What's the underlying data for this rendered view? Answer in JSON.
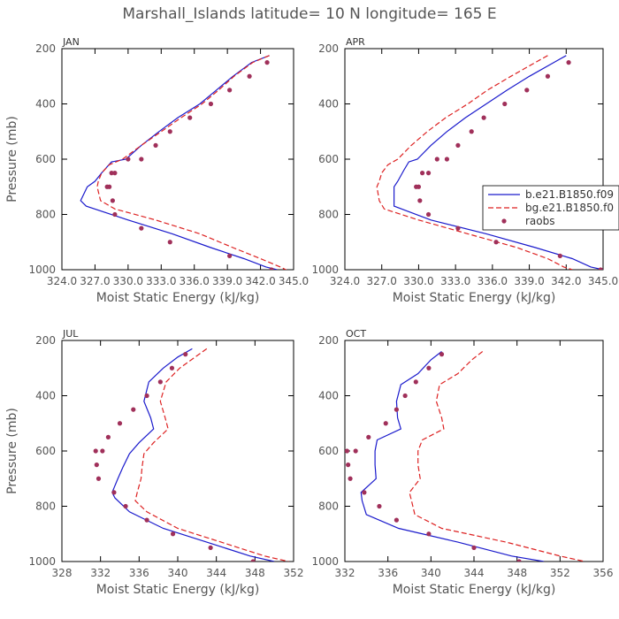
{
  "figure": {
    "title": "Marshall_Islands  latitude= 10 N longitude= 165 E"
  },
  "colors": {
    "model1": "#1a1acc",
    "model2": "#dd2222",
    "obs": "#a0305a"
  },
  "chart_data": [
    {
      "type": "line",
      "panel": "JAN",
      "xlabel": "Moist Static Energy (kJ/kg)",
      "ylabel": "Pressure (mb)",
      "xlim": [
        324.0,
        345.0
      ],
      "ylim": [
        1000,
        200
      ],
      "xticks": [
        324.0,
        327.0,
        330.0,
        333.0,
        336.0,
        339.0,
        342.0,
        345.0
      ],
      "xtick_labels": [
        "324.0",
        "327.0",
        "330.0",
        "333.0",
        "336.0",
        "339.0",
        "342.0",
        "345.0"
      ],
      "yticks": [
        200,
        400,
        600,
        800,
        1000
      ],
      "ytick_labels": [
        "200",
        "400",
        "600",
        "800",
        "1000"
      ],
      "legend": false,
      "series": [
        {
          "style": "solid",
          "x": [
            342.8,
            341.2,
            339.5,
            338.0,
            336.5,
            334.5,
            332.8,
            331.2,
            329.8,
            328.5,
            327.6,
            327.0,
            326.3,
            325.7,
            326.2,
            330.0,
            334.0,
            337.5,
            340.5,
            342.5,
            343.5
          ],
          "y": [
            225,
            250,
            300,
            350,
            400,
            450,
            500,
            550,
            600,
            610,
            650,
            680,
            700,
            750,
            770,
            820,
            870,
            920,
            960,
            990,
            1000
          ]
        },
        {
          "style": "dash",
          "x": [
            342.8,
            341.3,
            339.6,
            338.2,
            336.7,
            334.8,
            333.0,
            331.2,
            329.5,
            328.3,
            327.6,
            327.3,
            327.2,
            327.5,
            328.8,
            332.5,
            336.5,
            339.5,
            342.0,
            343.8,
            344.8
          ],
          "y": [
            225,
            250,
            300,
            350,
            400,
            450,
            500,
            550,
            600,
            620,
            650,
            680,
            700,
            750,
            780,
            820,
            870,
            920,
            960,
            990,
            1010
          ]
        }
      ],
      "points": {
        "x": [
          342.6,
          341.0,
          339.2,
          337.5,
          335.6,
          333.8,
          332.5,
          331.2,
          330.0,
          328.8,
          328.5,
          328.3,
          328.1,
          328.6,
          328.8,
          331.2,
          333.8,
          339.2,
          343.0
        ],
        "y": [
          250,
          300,
          350,
          400,
          450,
          500,
          550,
          600,
          600,
          650,
          650,
          700,
          700,
          750,
          800,
          850,
          900,
          950,
          1000
        ]
      }
    },
    {
      "type": "line",
      "panel": "APR",
      "xlabel": "Moist Static Energy (kJ/kg)",
      "ylabel": "",
      "xlim": [
        324.0,
        345.0
      ],
      "ylim": [
        1000,
        200
      ],
      "xticks": [
        324.0,
        327.0,
        330.0,
        333.0,
        336.0,
        339.0,
        342.0,
        345.0
      ],
      "xtick_labels": [
        "324.0",
        "327.0",
        "330.0",
        "333.0",
        "336.0",
        "339.0",
        "342.0",
        "345.0"
      ],
      "yticks": [
        200,
        400,
        600,
        800,
        1000
      ],
      "ytick_labels": [
        "200",
        "400",
        "600",
        "800",
        "1000"
      ],
      "legend": true,
      "legend_location": "right",
      "legend_entries": [
        "b.e21.B1850.f09",
        "bg.e21.B1850.f0",
        "raobs"
      ],
      "series": [
        {
          "style": "solid",
          "x": [
            342.0,
            341.0,
            339.0,
            337.2,
            335.5,
            333.8,
            332.3,
            331.0,
            329.9,
            329.2,
            328.8,
            328.3,
            328.0,
            328.0,
            328.0,
            331.0,
            335.5,
            339.5,
            342.5,
            344.0,
            345.0
          ],
          "y": [
            225,
            250,
            300,
            350,
            400,
            450,
            500,
            550,
            600,
            610,
            640,
            680,
            700,
            750,
            770,
            820,
            870,
            920,
            960,
            990,
            1000
          ]
        },
        {
          "style": "dash",
          "x": [
            340.5,
            339.5,
            337.5,
            335.6,
            334.0,
            332.2,
            330.7,
            329.4,
            328.3,
            327.5,
            327.0,
            326.8,
            326.6,
            326.8,
            327.2,
            330.0,
            334.0,
            338.0,
            340.5,
            341.8,
            342.5
          ],
          "y": [
            225,
            250,
            300,
            350,
            400,
            450,
            500,
            550,
            600,
            620,
            650,
            680,
            700,
            750,
            780,
            820,
            870,
            920,
            960,
            990,
            1000
          ]
        }
      ],
      "points": {
        "x": [
          342.2,
          340.5,
          338.8,
          337.0,
          335.3,
          334.3,
          333.2,
          332.3,
          331.5,
          330.8,
          330.3,
          330.0,
          329.8,
          330.1,
          330.8,
          333.2,
          336.3,
          341.5,
          344.8
        ],
        "y": [
          250,
          300,
          350,
          400,
          450,
          500,
          550,
          600,
          600,
          650,
          650,
          700,
          700,
          750,
          800,
          850,
          900,
          950,
          1000
        ]
      }
    },
    {
      "type": "line",
      "panel": "JUL",
      "xlabel": "Moist Static Energy (kJ/kg)",
      "ylabel": "Pressure (mb)",
      "xlim": [
        328,
        352
      ],
      "ylim": [
        1000,
        200
      ],
      "xticks": [
        328,
        332,
        336,
        340,
        344,
        348,
        352
      ],
      "xtick_labels": [
        "328",
        "332",
        "336",
        "340",
        "344",
        "348",
        "352"
      ],
      "yticks": [
        200,
        400,
        600,
        800,
        1000
      ],
      "ytick_labels": [
        "200",
        "400",
        "600",
        "800",
        "1000"
      ],
      "legend": false,
      "series": [
        {
          "style": "solid",
          "x": [
            341.5,
            340.0,
            338.5,
            337.0,
            336.5,
            337.2,
            337.5,
            336.0,
            335.0,
            334.3,
            333.8,
            333.2,
            333.5,
            335.0,
            338.5,
            343.0,
            347.5,
            350.0
          ],
          "y": [
            230,
            260,
            300,
            350,
            420,
            480,
            520,
            570,
            610,
            660,
            700,
            750,
            770,
            820,
            880,
            930,
            980,
            1000
          ]
        },
        {
          "style": "dash",
          "x": [
            343.0,
            341.8,
            340.2,
            338.8,
            338.2,
            338.7,
            339.0,
            337.5,
            336.5,
            336.3,
            336.2,
            335.8,
            335.6,
            336.8,
            340.0,
            344.5,
            349.0,
            351.5
          ],
          "y": [
            230,
            260,
            300,
            350,
            420,
            480,
            520,
            570,
            610,
            660,
            700,
            750,
            780,
            820,
            880,
            930,
            980,
            1000
          ]
        }
      ],
      "points": {
        "x": [
          340.8,
          339.4,
          338.2,
          336.8,
          335.4,
          334.0,
          332.8,
          332.2,
          331.5,
          331.6,
          331.8,
          333.4,
          334.6,
          336.8,
          339.5,
          343.4,
          347.8
        ],
        "y": [
          250,
          300,
          350,
          400,
          450,
          500,
          550,
          600,
          600,
          650,
          700,
          750,
          800,
          850,
          900,
          950,
          1000
        ]
      }
    },
    {
      "type": "line",
      "panel": "OCT",
      "xlabel": "Moist Static Energy (kJ/kg)",
      "ylabel": "",
      "xlim": [
        332,
        356
      ],
      "ylim": [
        1000,
        200
      ],
      "xticks": [
        332,
        336,
        340,
        344,
        348,
        352,
        356
      ],
      "xtick_labels": [
        "332",
        "336",
        "340",
        "344",
        "348",
        "352",
        "356"
      ],
      "yticks": [
        200,
        400,
        600,
        800,
        1000
      ],
      "ytick_labels": [
        "200",
        "400",
        "600",
        "800",
        "1000"
      ],
      "legend": false,
      "series": [
        {
          "style": "solid",
          "x": [
            341.0,
            340.0,
            338.8,
            337.2,
            336.8,
            336.9,
            337.2,
            335.0,
            334.8,
            334.8,
            334.9,
            333.5,
            333.6,
            334.0,
            337.0,
            342.5,
            347.5,
            350.5
          ],
          "y": [
            240,
            270,
            320,
            360,
            420,
            480,
            520,
            560,
            600,
            650,
            700,
            750,
            780,
            830,
            880,
            930,
            980,
            1000
          ]
        },
        {
          "style": "dash",
          "x": [
            344.8,
            343.8,
            342.5,
            340.8,
            340.5,
            341.0,
            341.2,
            339.2,
            338.8,
            338.8,
            339.0,
            338.0,
            338.2,
            338.5,
            341.0,
            347.0,
            352.0,
            354.3
          ],
          "y": [
            240,
            270,
            320,
            360,
            420,
            480,
            520,
            560,
            600,
            650,
            700,
            750,
            780,
            830,
            880,
            930,
            980,
            1000
          ]
        }
      ],
      "points": {
        "x": [
          341.0,
          339.8,
          338.6,
          337.6,
          336.8,
          335.8,
          334.2,
          333.0,
          332.2,
          332.3,
          332.5,
          333.8,
          335.2,
          336.8,
          339.8,
          344.0,
          348.2
        ],
        "y": [
          250,
          300,
          350,
          400,
          450,
          500,
          550,
          600,
          600,
          650,
          700,
          750,
          800,
          850,
          900,
          950,
          1000
        ]
      }
    }
  ]
}
